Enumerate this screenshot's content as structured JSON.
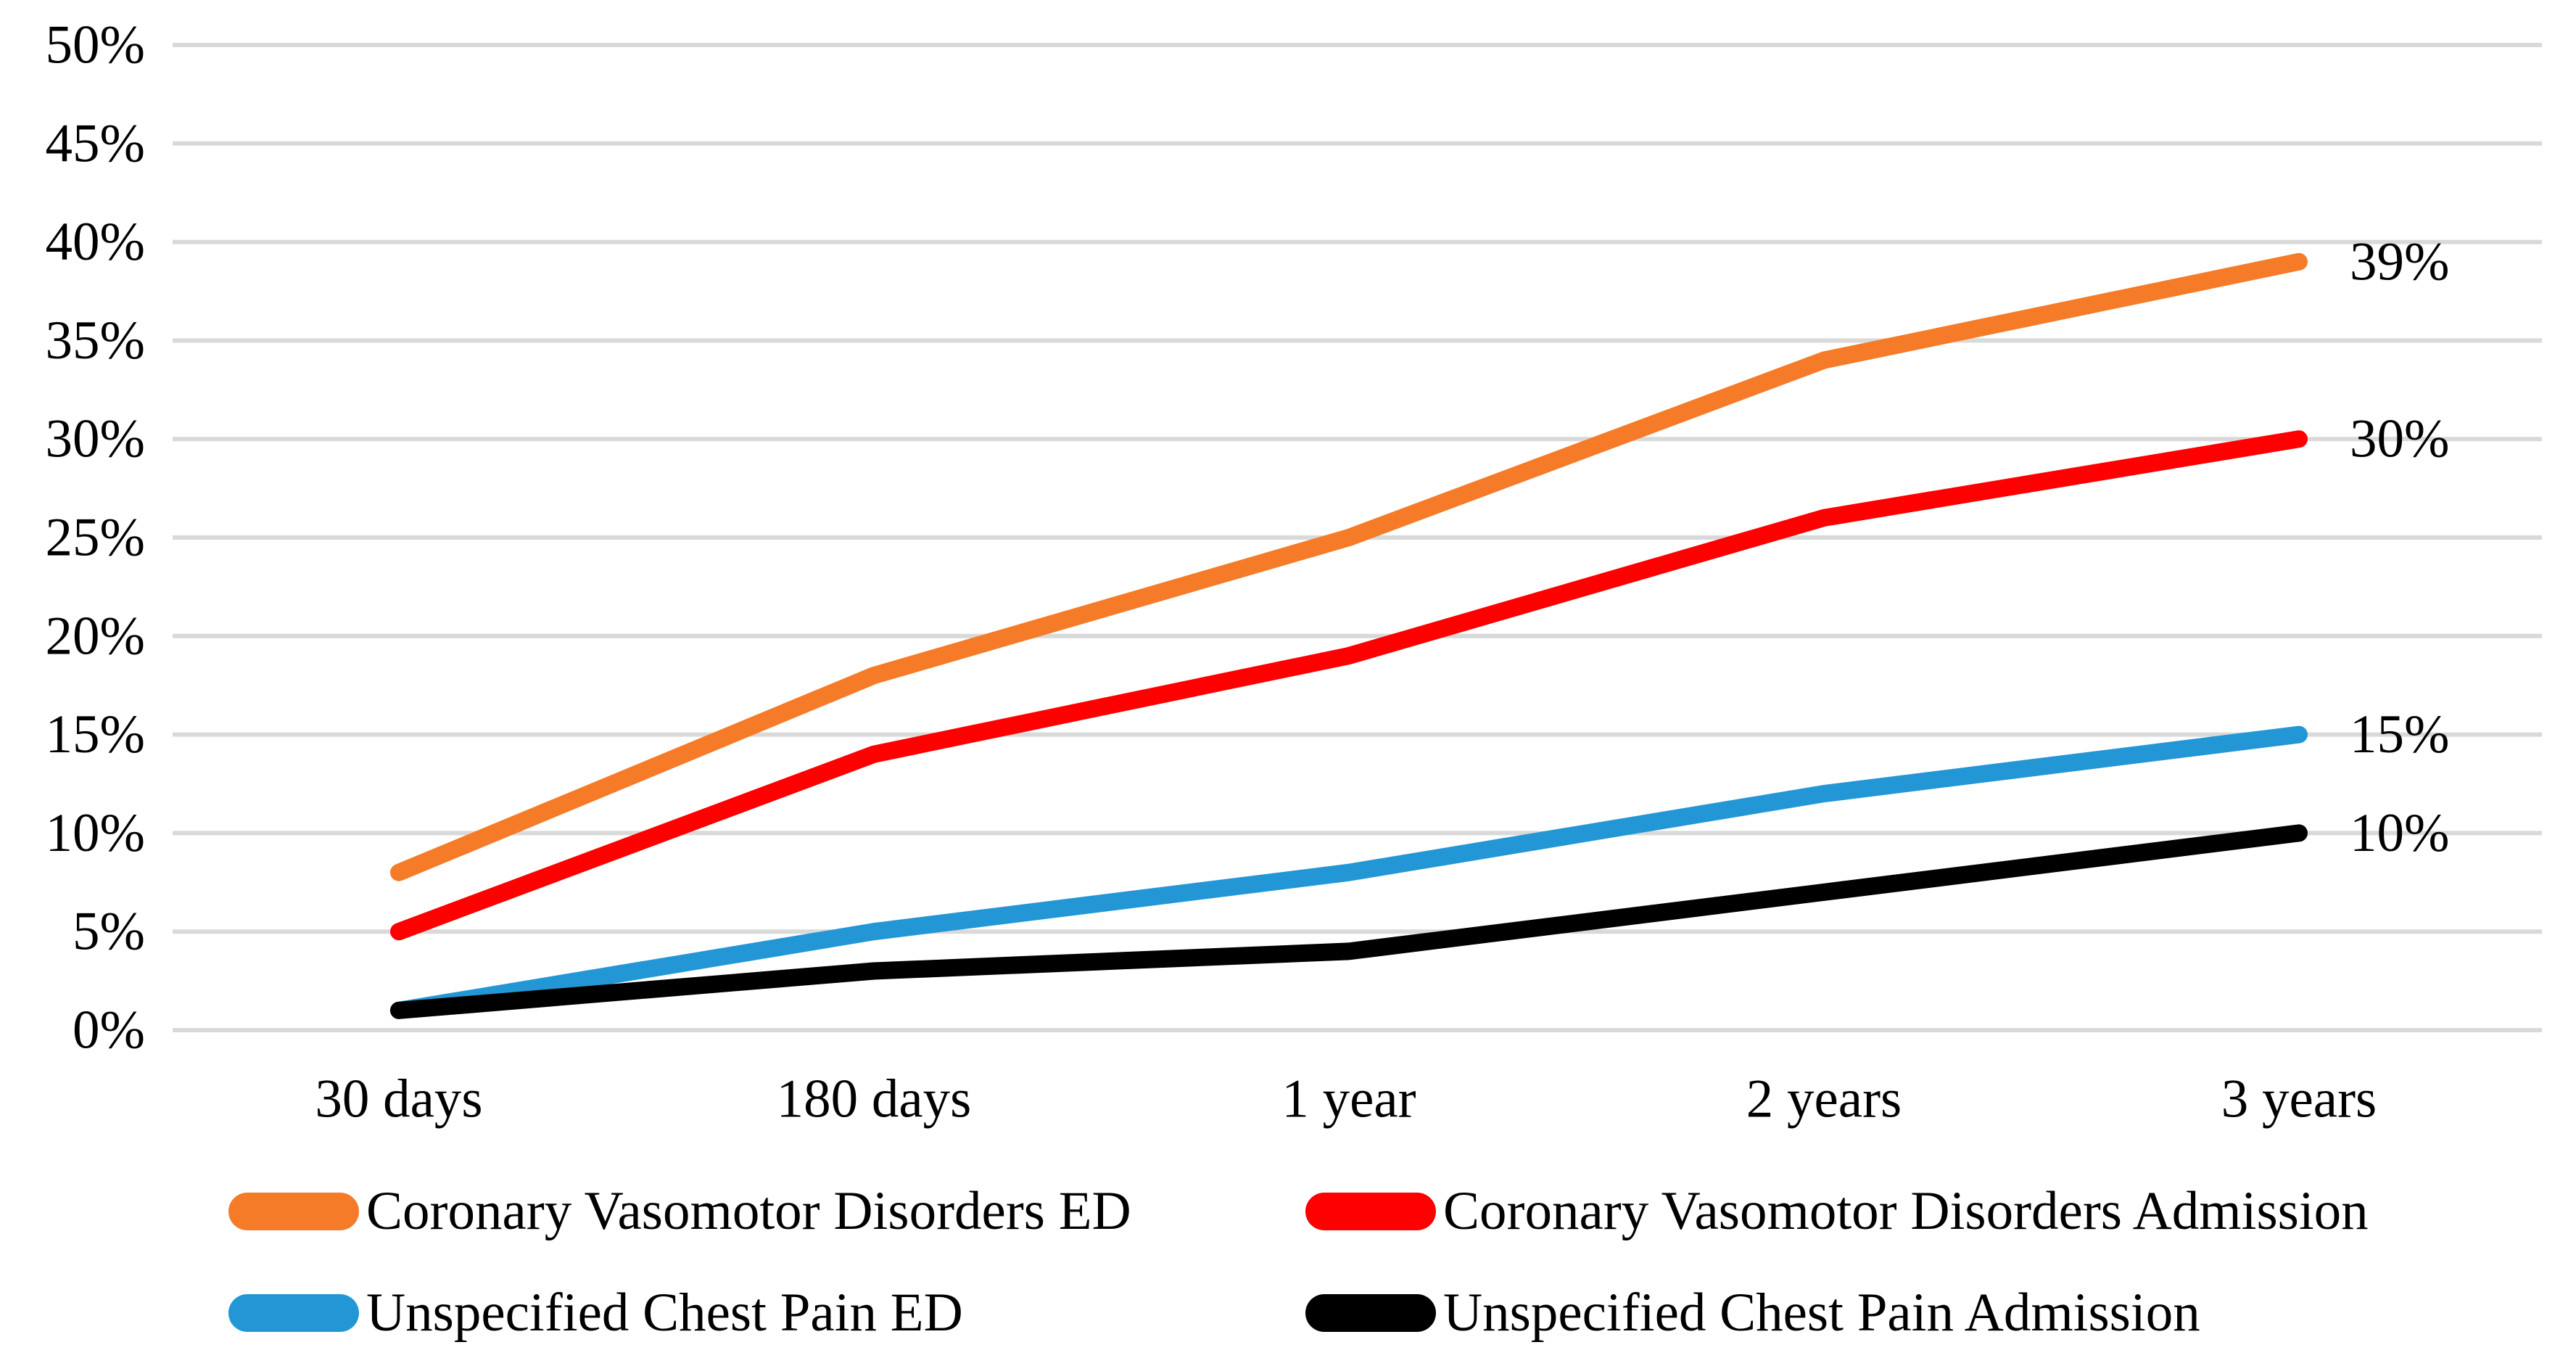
{
  "chart_data": {
    "type": "line",
    "title": "",
    "xlabel": "",
    "ylabel": "",
    "categories": [
      "30 days",
      "180 days",
      "1 year",
      "2 years",
      "3 years"
    ],
    "series": [
      {
        "name": "Coronary Vasomotor Disorders ED",
        "color": "#F57B28",
        "values": [
          8,
          18,
          25,
          34,
          39
        ],
        "end_label": "39%"
      },
      {
        "name": "Coronary Vasomotor Disorders Admission",
        "color": "#FE0000",
        "values": [
          5,
          14,
          19,
          26,
          30
        ],
        "end_label": "30%"
      },
      {
        "name": "Unspecified Chest Pain ED",
        "color": "#2397D5",
        "values": [
          1,
          5,
          8,
          12,
          15
        ],
        "end_label": "15%"
      },
      {
        "name": "Unspecified Chest Pain Admission",
        "color": "#000000",
        "values": [
          1,
          3,
          4,
          7,
          10
        ],
        "end_label": "10%"
      }
    ],
    "ylim": [
      0,
      50
    ],
    "y_tick_step": 5,
    "y_ticks": [
      "0%",
      "5%",
      "10%",
      "15%",
      "20%",
      "25%",
      "30%",
      "35%",
      "40%",
      "45%",
      "50%"
    ],
    "grid": "horizontal",
    "gridline_color": "#D9D9D9",
    "legend_position": "bottom"
  }
}
